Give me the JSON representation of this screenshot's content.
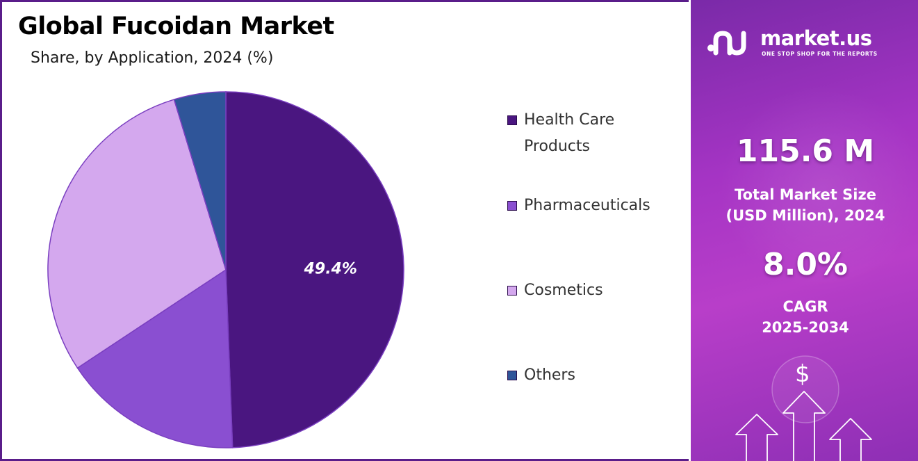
{
  "header": {
    "title": "Global Fucoidan Market",
    "subtitle": "Share, by Application, 2024 (%)"
  },
  "chart_data": {
    "type": "pie",
    "title": "Global Fucoidan Market",
    "subtitle": "Share, by Application, 2024 (%)",
    "categories": [
      "Health Care Products",
      "Pharmaceuticals",
      "Cosmetics",
      "Others"
    ],
    "values": [
      49.4,
      16.3,
      29.6,
      4.7
    ],
    "colors": [
      "#4a1680",
      "#8a4fd1",
      "#d4a8ee",
      "#2f5599"
    ],
    "data_labels": [
      "49.4%",
      "",
      "",
      ""
    ],
    "start": "12 o'clock",
    "direction": "clockwise",
    "legend": "right"
  },
  "legend": {
    "items": [
      {
        "line1": "Health Care",
        "line2": "Products",
        "color": "#4a1680"
      },
      {
        "line1": "Pharmaceuticals",
        "line2": "",
        "color": "#8a4fd1"
      },
      {
        "line1": "Cosmetics",
        "line2": "",
        "color": "#d4a8ee"
      },
      {
        "line1": "Others",
        "line2": "",
        "color": "#2f5599"
      }
    ]
  },
  "sidebar": {
    "brand_name": "market.us",
    "brand_tagline": "ONE STOP SHOP FOR THE REPORTS",
    "market_size_value": "115.6 M",
    "market_size_label_line1": "Total Market Size",
    "market_size_label_line2": "(USD Million), 2024",
    "cagr_value": "8.0%",
    "cagr_label_line1": "CAGR",
    "cagr_label_line2": "2025-2034",
    "currency_symbol": "$",
    "logo_icon": "market-us-logo-icon",
    "decor_icon": "growth-arrows-icon"
  }
}
